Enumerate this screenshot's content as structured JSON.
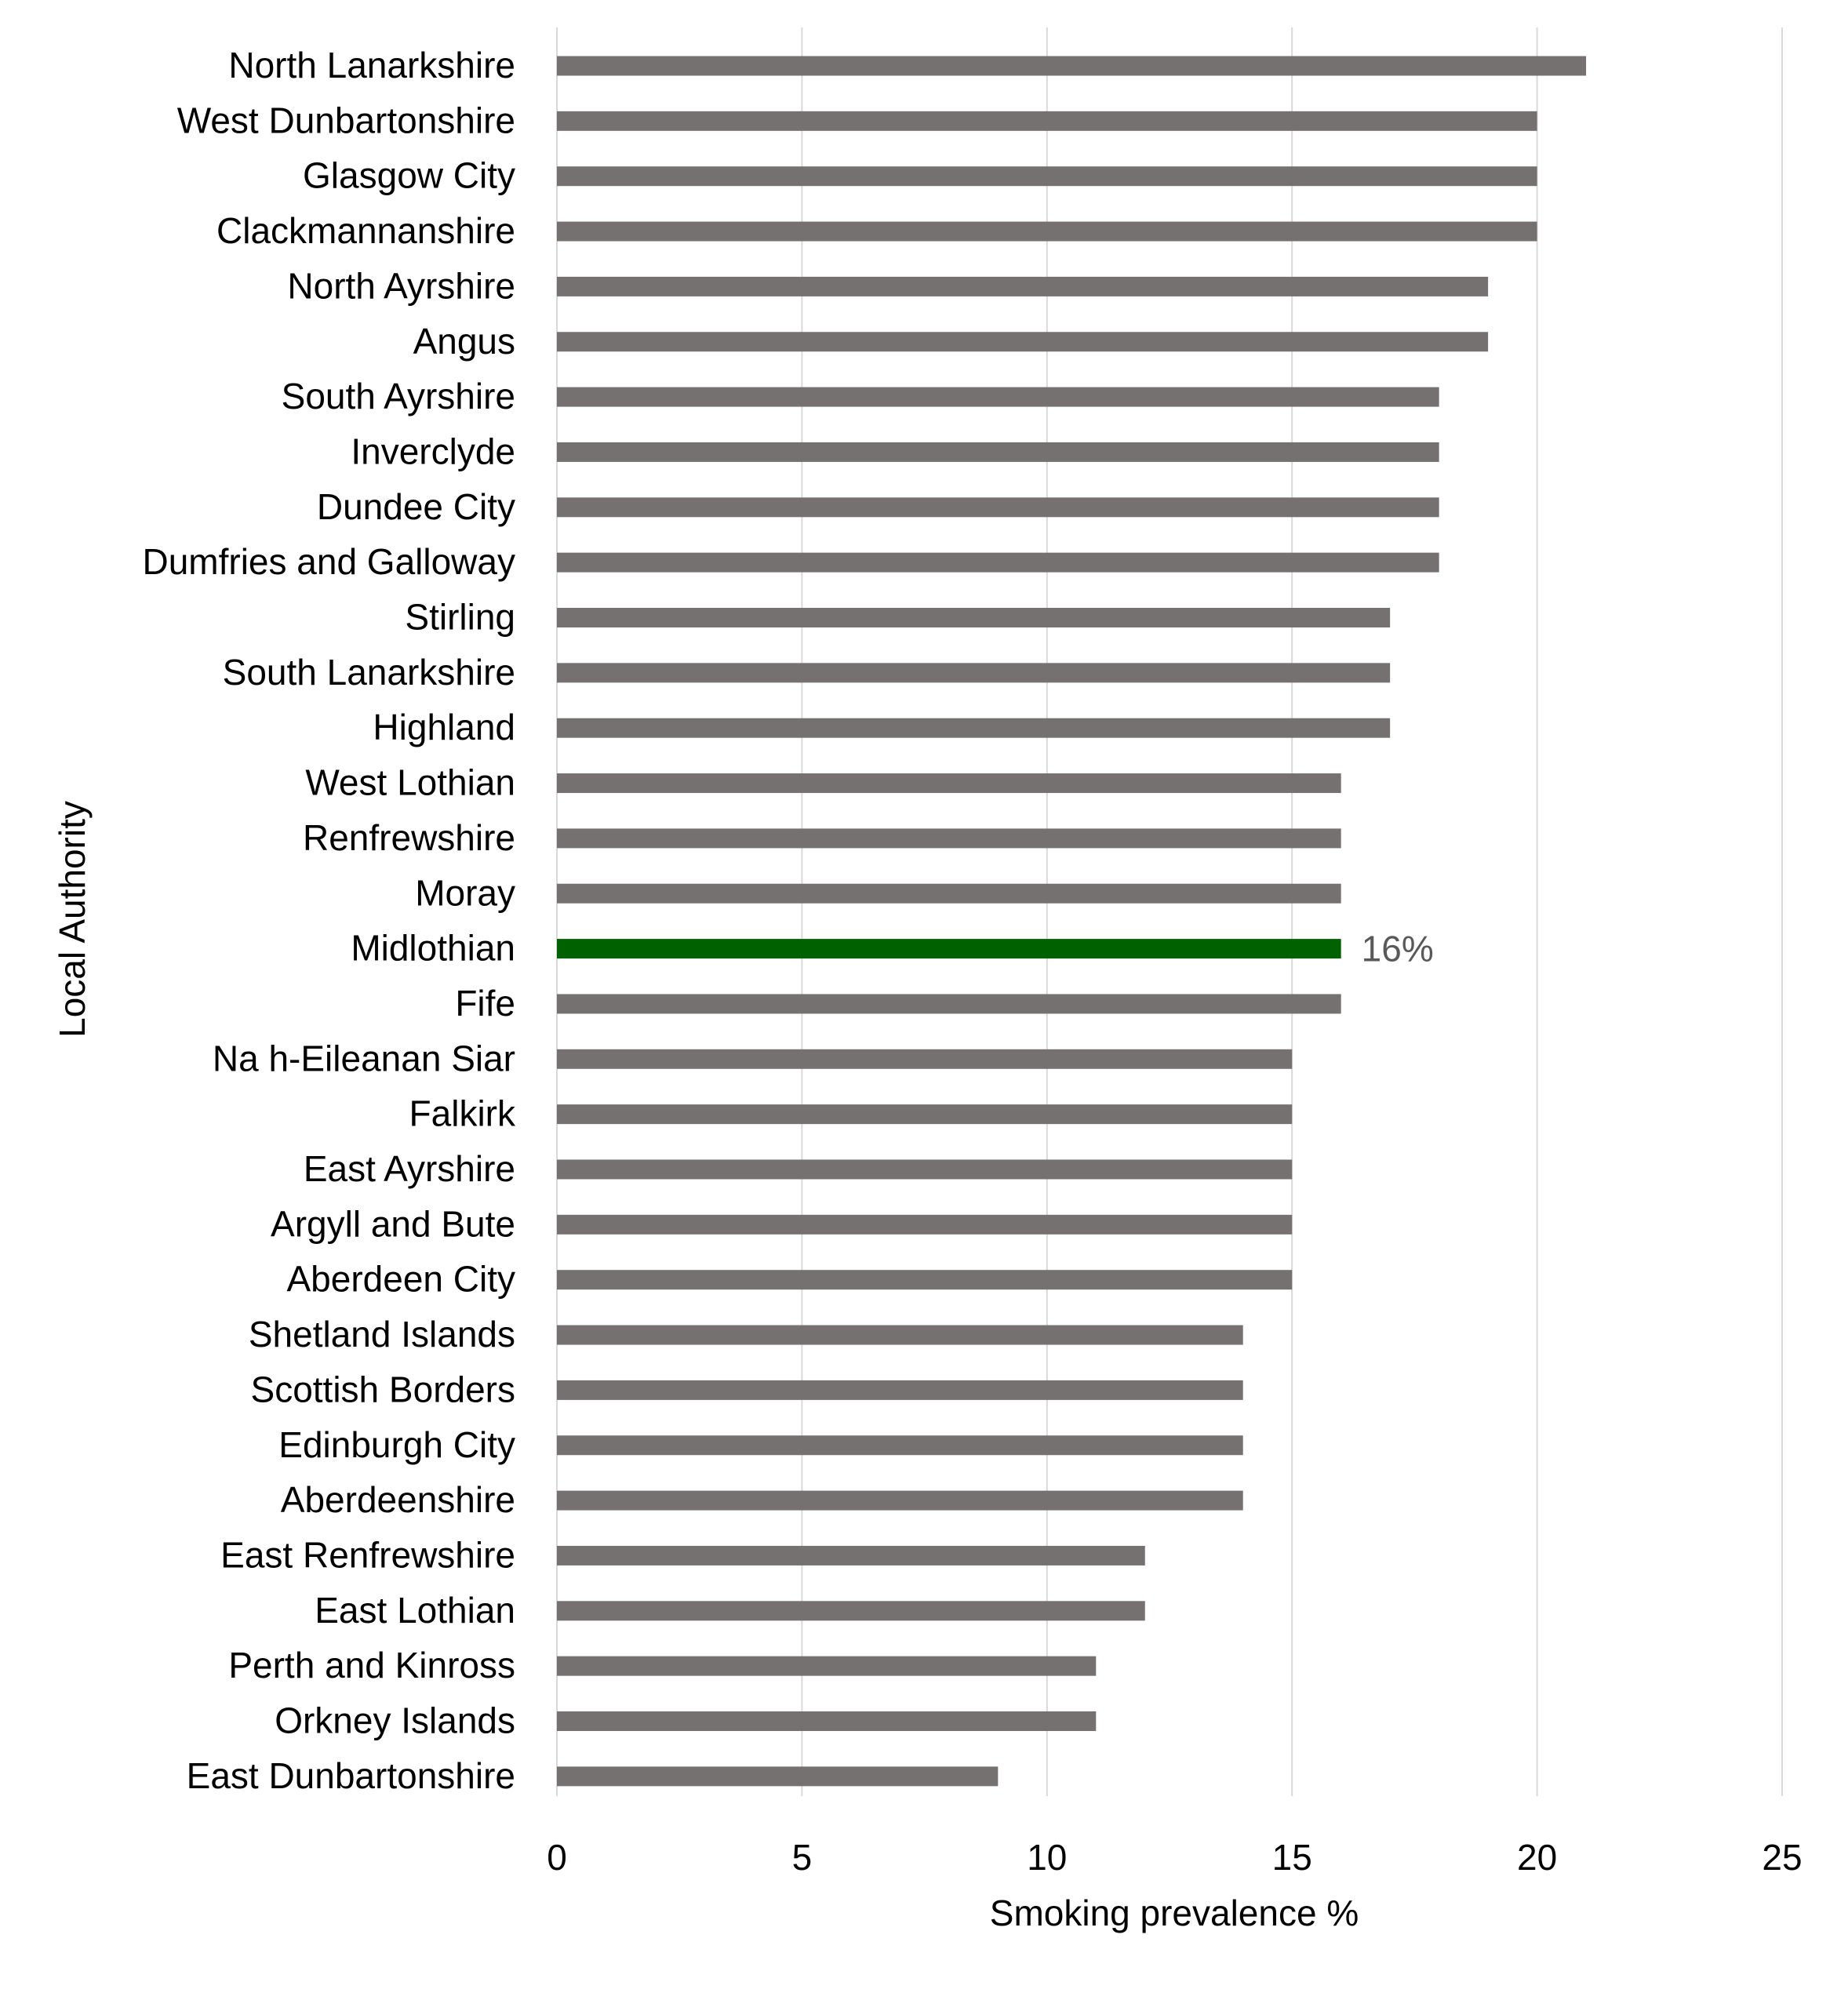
{
  "chart_data": {
    "type": "bar",
    "orientation": "horizontal",
    "title": "",
    "xlabel": "Smoking prevalence %",
    "ylabel": "Local Authority",
    "xlim": [
      0,
      25
    ],
    "xticks": [
      0,
      5,
      10,
      15,
      20,
      25
    ],
    "grid": "vertical",
    "categories": [
      "North Lanarkshire",
      "West Dunbartonshire",
      "Glasgow City",
      "Clackmannanshire",
      "North Ayrshire",
      "Angus",
      "South Ayrshire",
      "Inverclyde",
      "Dundee City",
      "Dumfries and Galloway",
      "Stirling",
      "South Lanarkshire",
      "Highland",
      "West Lothian",
      "Renfrewshire",
      "Moray",
      "Midlothian",
      "Fife",
      "Na h-Eileanan Siar",
      "Falkirk",
      "East Ayrshire",
      "Argyll and Bute",
      "Aberdeen City",
      "Shetland Islands",
      "Scottish Borders",
      "Edinburgh City",
      "Aberdeenshire",
      "East Renfrewshire",
      "East Lothian",
      "Perth and Kinross",
      "Orkney Islands",
      "East Dunbartonshire"
    ],
    "values": [
      21,
      20,
      20,
      20,
      19,
      19,
      18,
      18,
      18,
      18,
      17,
      17,
      17,
      16,
      16,
      16,
      16,
      16,
      15,
      15,
      15,
      15,
      15,
      14,
      14,
      14,
      14,
      12,
      12,
      11,
      11,
      9
    ],
    "highlight": {
      "category": "Midlothian",
      "label": "16%"
    },
    "colors": {
      "bar": "#767171",
      "highlight": "#006100",
      "grid": "#d9d9d9",
      "text": "#000000",
      "label": "#595959"
    }
  }
}
